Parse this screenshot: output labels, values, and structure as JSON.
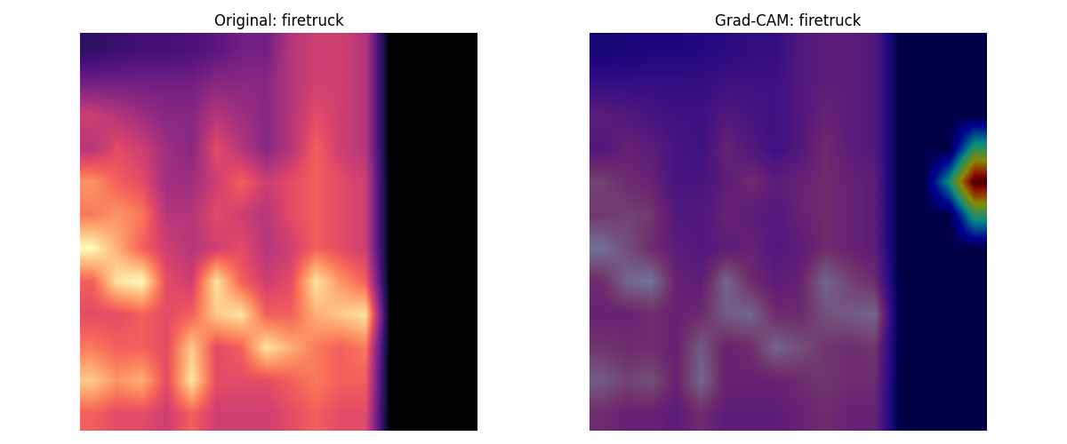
{
  "chart_data": [
    {
      "type": "heatmap",
      "title": "Original: firetruck",
      "tick_labels": false,
      "cells": [
        [
          0.15,
          0.18,
          0.2,
          0.2,
          0.22,
          0.25,
          0.3,
          0.3,
          0.45,
          0.5,
          0.5,
          0.45,
          0,
          0,
          0,
          0
        ],
        [
          0.3,
          0.3,
          0.3,
          0.3,
          0.3,
          0.35,
          0.35,
          0.35,
          0.45,
          0.5,
          0.5,
          0.45,
          0,
          0,
          0,
          0
        ],
        [
          0.5,
          0.45,
          0.4,
          0.35,
          0.35,
          0.45,
          0.4,
          0.35,
          0.45,
          0.55,
          0.5,
          0.45,
          0,
          0,
          0,
          0
        ],
        [
          0.45,
          0.55,
          0.5,
          0.4,
          0.35,
          0.55,
          0.45,
          0.35,
          0.45,
          0.6,
          0.5,
          0.45,
          0,
          0,
          0,
          0
        ],
        [
          0.7,
          0.6,
          0.55,
          0.4,
          0.4,
          0.5,
          0.6,
          0.5,
          0.55,
          0.6,
          0.55,
          0.5,
          0,
          0,
          0,
          0
        ],
        [
          0.65,
          0.7,
          0.65,
          0.45,
          0.45,
          0.55,
          0.5,
          0.45,
          0.55,
          0.6,
          0.55,
          0.5,
          0,
          0,
          0,
          0
        ],
        [
          0.9,
          0.75,
          0.6,
          0.5,
          0.45,
          0.5,
          0.55,
          0.45,
          0.5,
          0.6,
          0.55,
          0.5,
          0,
          0,
          0,
          0
        ],
        [
          0.6,
          0.85,
          0.9,
          0.55,
          0.5,
          0.85,
          0.6,
          0.5,
          0.55,
          0.85,
          0.7,
          0.6,
          0,
          0,
          0,
          0
        ],
        [
          0.55,
          0.55,
          0.6,
          0.55,
          0.6,
          0.8,
          0.85,
          0.6,
          0.6,
          0.75,
          0.8,
          0.85,
          0,
          0,
          0,
          0
        ],
        [
          0.65,
          0.6,
          0.6,
          0.55,
          0.8,
          0.55,
          0.6,
          0.85,
          0.75,
          0.65,
          0.6,
          0.65,
          0,
          0,
          0,
          0
        ],
        [
          0.8,
          0.7,
          0.75,
          0.55,
          0.85,
          0.55,
          0.55,
          0.55,
          0.6,
          0.65,
          0.6,
          0.6,
          0,
          0,
          0,
          0
        ],
        [
          0.6,
          0.55,
          0.55,
          0.5,
          0.6,
          0.5,
          0.5,
          0.5,
          0.55,
          0.6,
          0.55,
          0.55,
          0,
          0,
          0,
          0
        ]
      ]
    },
    {
      "type": "heatmap_overlay",
      "title": "Grad-CAM: firetruck",
      "tick_labels": false,
      "cells": [
        [
          0.15,
          0.18,
          0.2,
          0.2,
          0.22,
          0.25,
          0.3,
          0.3,
          0.45,
          0.5,
          0.5,
          0.45,
          0,
          0,
          0,
          0
        ],
        [
          0.3,
          0.3,
          0.3,
          0.3,
          0.3,
          0.35,
          0.35,
          0.35,
          0.45,
          0.5,
          0.5,
          0.45,
          0,
          0,
          0,
          0
        ],
        [
          0.5,
          0.45,
          0.4,
          0.35,
          0.35,
          0.45,
          0.4,
          0.35,
          0.45,
          0.55,
          0.5,
          0.45,
          0,
          0,
          0,
          0
        ],
        [
          0.45,
          0.55,
          0.5,
          0.4,
          0.35,
          0.55,
          0.45,
          0.35,
          0.45,
          0.6,
          0.5,
          0.45,
          0,
          0,
          0,
          0
        ],
        [
          0.7,
          0.6,
          0.55,
          0.4,
          0.4,
          0.5,
          0.6,
          0.5,
          0.55,
          0.6,
          0.55,
          0.5,
          0,
          0,
          0,
          0
        ],
        [
          0.65,
          0.7,
          0.65,
          0.45,
          0.45,
          0.55,
          0.5,
          0.45,
          0.55,
          0.6,
          0.55,
          0.5,
          0,
          0,
          0,
          0
        ],
        [
          0.9,
          0.75,
          0.6,
          0.5,
          0.45,
          0.5,
          0.55,
          0.45,
          0.5,
          0.6,
          0.55,
          0.5,
          0,
          0,
          0,
          0
        ],
        [
          0.6,
          0.85,
          0.9,
          0.55,
          0.5,
          0.85,
          0.6,
          0.5,
          0.55,
          0.85,
          0.7,
          0.6,
          0,
          0,
          0,
          0
        ],
        [
          0.55,
          0.55,
          0.6,
          0.55,
          0.6,
          0.8,
          0.85,
          0.6,
          0.6,
          0.75,
          0.8,
          0.85,
          0,
          0,
          0,
          0
        ],
        [
          0.65,
          0.6,
          0.6,
          0.55,
          0.8,
          0.55,
          0.6,
          0.85,
          0.75,
          0.65,
          0.6,
          0.65,
          0,
          0,
          0,
          0
        ],
        [
          0.8,
          0.7,
          0.75,
          0.55,
          0.85,
          0.55,
          0.55,
          0.55,
          0.6,
          0.65,
          0.6,
          0.6,
          0,
          0,
          0,
          0
        ],
        [
          0.6,
          0.55,
          0.55,
          0.5,
          0.6,
          0.5,
          0.5,
          0.5,
          0.55,
          0.6,
          0.55,
          0.55,
          0,
          0,
          0,
          0
        ]
      ],
      "cam_cells": [
        [
          0,
          0,
          0,
          0,
          0,
          0,
          0,
          0,
          0,
          0,
          0,
          0,
          0,
          0,
          0,
          0
        ],
        [
          0,
          0,
          0,
          0,
          0,
          0,
          0,
          0,
          0,
          0,
          0,
          0,
          0,
          0,
          0,
          0
        ],
        [
          0,
          0,
          0,
          0,
          0,
          0,
          0,
          0,
          0,
          0,
          0,
          0,
          0,
          0,
          0,
          0
        ],
        [
          0,
          0,
          0,
          0,
          0,
          0,
          0,
          0,
          0,
          0,
          0,
          0,
          0,
          0,
          0,
          0.45
        ],
        [
          0,
          0,
          0,
          0,
          0,
          0,
          0,
          0,
          0,
          0,
          0,
          0,
          0,
          0,
          0.4,
          1.0
        ],
        [
          0,
          0,
          0,
          0,
          0,
          0,
          0,
          0,
          0,
          0,
          0,
          0,
          0,
          0,
          0,
          0.45
        ],
        [
          0,
          0,
          0,
          0,
          0,
          0,
          0,
          0,
          0,
          0,
          0,
          0,
          0,
          0,
          0,
          0
        ],
        [
          0,
          0,
          0,
          0,
          0,
          0,
          0,
          0,
          0,
          0,
          0,
          0,
          0,
          0,
          0,
          0
        ],
        [
          0,
          0,
          0,
          0,
          0,
          0,
          0,
          0,
          0,
          0,
          0,
          0,
          0,
          0,
          0,
          0
        ],
        [
          0,
          0,
          0,
          0,
          0,
          0,
          0,
          0,
          0,
          0,
          0,
          0,
          0,
          0,
          0,
          0
        ],
        [
          0,
          0,
          0,
          0,
          0,
          0,
          0,
          0,
          0,
          0,
          0,
          0,
          0,
          0,
          0,
          0
        ],
        [
          0,
          0,
          0,
          0,
          0,
          0,
          0,
          0,
          0,
          0,
          0,
          0,
          0,
          0,
          0,
          0
        ]
      ]
    }
  ]
}
